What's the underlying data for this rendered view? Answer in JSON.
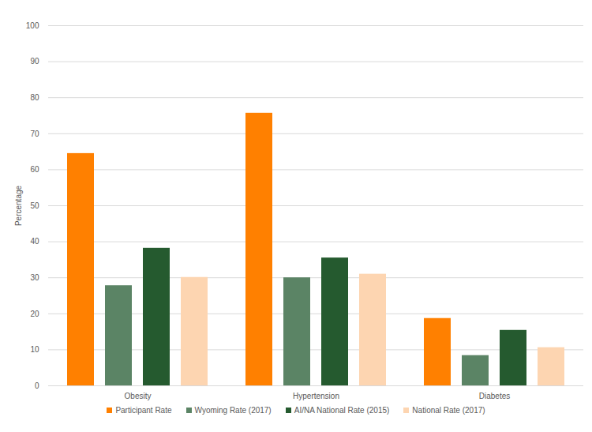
{
  "chart_data": {
    "type": "bar",
    "categories": [
      "Obesity",
      "Hypertension",
      "Diabetes"
    ],
    "series": [
      {
        "name": "Participant Rate",
        "color": "#ff8000",
        "values": [
          64.5,
          75.7,
          18.7
        ]
      },
      {
        "name": "Wyoming Rate (2017)",
        "color": "#5b8465",
        "values": [
          27.8,
          30.0,
          8.4
        ]
      },
      {
        "name": "AI/NA National Rate (2015)",
        "color": "#255a2f",
        "values": [
          38.2,
          35.5,
          15.4
        ]
      },
      {
        "name": "National Rate (2017)",
        "color": "#fdd5b1",
        "values": [
          30.1,
          31.0,
          10.6
        ]
      }
    ],
    "ylabel": "Percentage",
    "ylim": [
      0,
      100
    ],
    "yticks": [
      0,
      10,
      20,
      30,
      40,
      50,
      60,
      70,
      80,
      90,
      100
    ],
    "grid": true,
    "legend": "bottom"
  }
}
